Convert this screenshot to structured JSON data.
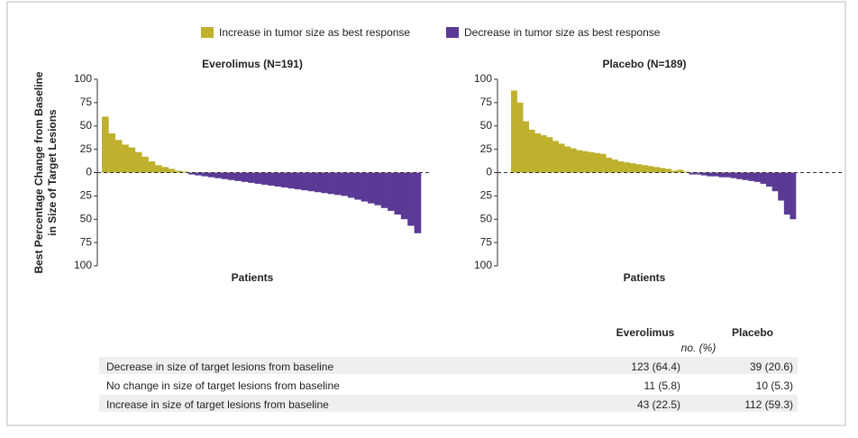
{
  "legend": [
    {
      "name": "Increase in tumor size as best response",
      "color": "#bfb12e"
    },
    {
      "name": "Decrease in tumor size as best response",
      "color": "#5a3a95"
    }
  ],
  "chart_data": [
    {
      "type": "bar",
      "title": "Everolimus (N=191)",
      "xlabel": "Patients",
      "ylabel": [
        "Best Percentage Change from Baseline",
        "in Size of Target Lesions"
      ],
      "ylim": [
        -100,
        100
      ],
      "yticks": [
        100,
        75,
        50,
        25,
        0,
        {
          "value": -25,
          "label": "25"
        },
        {
          "value": -50,
          "label": "50"
        },
        {
          "value": -75,
          "label": "75"
        },
        {
          "value": -100,
          "label": "100"
        }
      ],
      "values": [
        60,
        42,
        35,
        30,
        27,
        22,
        17,
        12,
        8,
        6,
        4,
        2,
        1,
        -2,
        -3,
        -4,
        -5,
        -6,
        -7,
        -8,
        -9,
        -10,
        -11,
        -12,
        -13,
        -14,
        -15,
        -16,
        -17,
        -18,
        -19,
        -20,
        -21,
        -22,
        -23,
        -24,
        -25,
        -27,
        -29,
        -31,
        -33,
        -35,
        -38,
        -41,
        -45,
        -50,
        -57,
        -65
      ]
    },
    {
      "type": "bar",
      "title": "Placebo (N=189)",
      "xlabel": "Patients",
      "ylim": [
        -100,
        100
      ],
      "yticks": [
        100,
        75,
        50,
        25,
        0,
        {
          "value": -25,
          "label": "25"
        },
        {
          "value": -50,
          "label": "50"
        },
        {
          "value": -75,
          "label": "75"
        },
        {
          "value": -100,
          "label": "100"
        }
      ],
      "values": [
        88,
        75,
        55,
        46,
        42,
        40,
        38,
        34,
        31,
        28,
        26,
        24,
        23,
        22,
        21,
        20,
        16,
        14,
        12,
        11,
        10,
        9,
        8,
        7,
        6,
        5,
        4,
        2,
        3,
        1,
        -2,
        -2,
        -3,
        -4,
        -4,
        -5,
        -5,
        -6,
        -7,
        -8,
        -9,
        -10,
        -12,
        -15,
        -20,
        -30,
        -45,
        -50
      ]
    }
  ],
  "table": {
    "columns": [
      "Everolimus",
      "Placebo"
    ],
    "unit": "no. (%)",
    "rows": [
      [
        "Decrease in size of target lesions from baseline",
        "123 (64.4)",
        "39 (20.6)"
      ],
      [
        "No change in size of target lesions from baseline",
        "11 (5.8)",
        "10 (5.3)"
      ],
      [
        "Increase in size of target lesions from baseline",
        "43 (22.5)",
        "112 (59.3)"
      ]
    ]
  }
}
